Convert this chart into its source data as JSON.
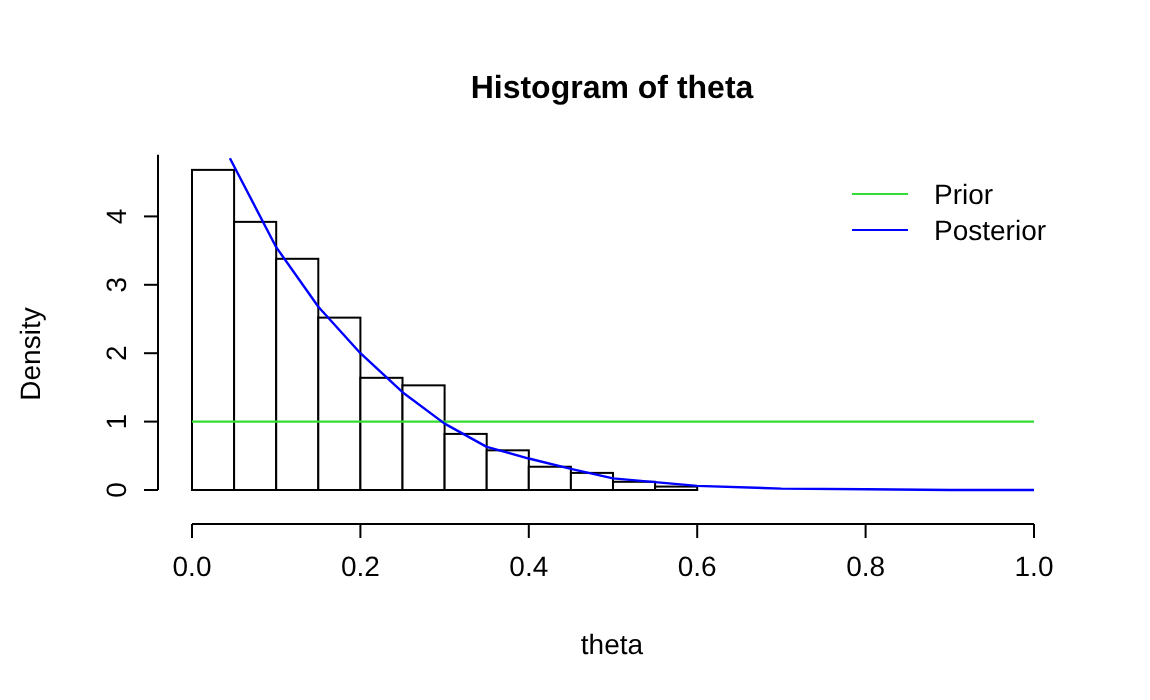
{
  "chart_data": {
    "type": "histogram",
    "title": "Histogram of theta",
    "xlabel": "theta",
    "ylabel": "Density",
    "bins": [
      0,
      0.05,
      0.1,
      0.15,
      0.2,
      0.25,
      0.3,
      0.35,
      0.4,
      0.45,
      0.5,
      0.55,
      0.6,
      0.65
    ],
    "values": [
      4.68,
      3.92,
      3.38,
      2.52,
      1.64,
      1.53,
      0.82,
      0.58,
      0.34,
      0.25,
      0.12,
      0.05,
      null
    ],
    "color": "#ffffff",
    "series": [
      {
        "type": "line",
        "name": "Prior",
        "color": "#33dd33",
        "x": [
          0,
          1
        ],
        "values": [
          1,
          1
        ]
      },
      {
        "type": "line",
        "name": "Posterior",
        "color": "#0000ff",
        "x": [
          0.045,
          0.1,
          0.15,
          0.2,
          0.25,
          0.3,
          0.35,
          0.4,
          0.45,
          0.5,
          0.6,
          0.7,
          0.8,
          0.9,
          1.0
        ],
        "values": [
          4.85,
          3.55,
          2.68,
          2.0,
          1.43,
          0.97,
          0.63,
          0.46,
          0.31,
          0.17,
          0.06,
          0.02,
          0.01,
          0,
          0
        ]
      }
    ],
    "xlim": [
      0,
      1
    ],
    "xticks": [
      {
        "value": 0,
        "label": "0.0"
      },
      0.2,
      0.4,
      0.6,
      0.8,
      {
        "value": 1,
        "label": "1.0"
      }
    ],
    "ylim": [
      0,
      4.9
    ],
    "yticks": [
      0,
      1,
      2,
      3,
      4
    ],
    "grid": false,
    "legend": "top right",
    "line_style": "solid",
    "marker": "none"
  }
}
